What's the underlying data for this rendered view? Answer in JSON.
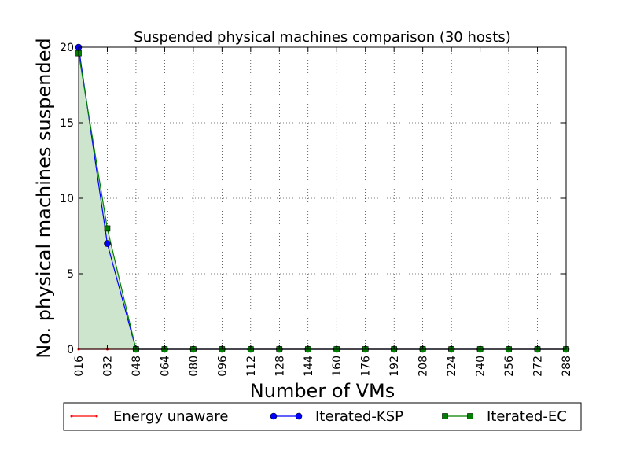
{
  "chart_data": {
    "type": "line",
    "title": "Suspended physical machines comparison (30 hosts)",
    "xlabel": "Number of VMs",
    "ylabel": "No. physical machines suspended",
    "categories": [
      "016",
      "032",
      "048",
      "064",
      "080",
      "096",
      "112",
      "128",
      "144",
      "160",
      "176",
      "192",
      "208",
      "224",
      "240",
      "256",
      "272",
      "288"
    ],
    "ylim": [
      0,
      20
    ],
    "yticks": [
      "0",
      "5",
      "10",
      "15",
      "20"
    ],
    "grid": true,
    "legend": "bottom",
    "series": [
      {
        "name": "Energy unaware",
        "color": "#ff0000",
        "marker": "dot",
        "values": [
          0,
          0,
          0,
          0,
          0,
          0,
          0,
          0,
          0,
          0,
          0,
          0,
          0,
          0,
          0,
          0,
          0,
          0
        ]
      },
      {
        "name": "Iterated-KSP",
        "color": "#0000ff",
        "marker": "circle",
        "values": [
          20,
          7,
          0,
          0,
          0,
          0,
          0,
          0,
          0,
          0,
          0,
          0,
          0,
          0,
          0,
          0,
          0,
          0
        ]
      },
      {
        "name": "Iterated-EC",
        "color": "#008000",
        "marker": "square",
        "fill": "#cce5cc",
        "values": [
          19.6,
          8,
          0,
          0,
          0,
          0,
          0,
          0,
          0,
          0,
          0,
          0,
          0,
          0,
          0,
          0,
          0,
          0
        ]
      }
    ]
  }
}
